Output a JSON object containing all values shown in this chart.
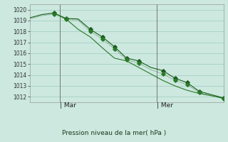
{
  "background_color": "#cce8df",
  "grid_color": "#aad4c8",
  "line_color_dark": "#1a5c1a",
  "line_color_mid": "#2a7a2a",
  "ylabel": "Pression niveau de la mer( hPa )",
  "ylim": [
    1011.5,
    1020.5
  ],
  "yticks": [
    1012,
    1013,
    1014,
    1015,
    1016,
    1017,
    1018,
    1019,
    1020
  ],
  "xlim": [
    0,
    16
  ],
  "mar_x": 2.5,
  "mer_x": 10.5,
  "series1_x": [
    0,
    0.5,
    1,
    2,
    3,
    4,
    5,
    6,
    7,
    8,
    9,
    10,
    11,
    12,
    13,
    14,
    15,
    16
  ],
  "series1_y": [
    1019.25,
    1019.4,
    1019.55,
    1019.7,
    1019.2,
    1019.15,
    1018.2,
    1017.5,
    1016.6,
    1015.55,
    1015.3,
    1014.7,
    1014.4,
    1013.7,
    1013.3,
    1012.5,
    1012.2,
    1011.9
  ],
  "series2_x": [
    0,
    0.5,
    1,
    2,
    3,
    4,
    5,
    6,
    7,
    8,
    9,
    10,
    11,
    12,
    13,
    14,
    15,
    16
  ],
  "series2_y": [
    1019.15,
    1019.3,
    1019.45,
    1019.6,
    1019.1,
    1019.05,
    1018.0,
    1017.3,
    1016.4,
    1015.4,
    1015.1,
    1014.5,
    1014.1,
    1013.5,
    1013.1,
    1012.4,
    1012.1,
    1011.85
  ],
  "series3_x": [
    2,
    3,
    4,
    5,
    6,
    7,
    8,
    9,
    10,
    11,
    12,
    13,
    14,
    15,
    16
  ],
  "series3_y": [
    1019.7,
    1019.15,
    1018.2,
    1017.5,
    1016.5,
    1015.55,
    1015.3,
    1014.7,
    1014.1,
    1013.5,
    1013.0,
    1012.6,
    1012.3,
    1012.1,
    1011.85
  ],
  "marker_x1": [
    2,
    3,
    5,
    6,
    7,
    8,
    9,
    11,
    12,
    13,
    14,
    16
  ],
  "marker_y1": [
    1019.7,
    1019.2,
    1018.2,
    1017.5,
    1016.6,
    1015.55,
    1015.3,
    1014.4,
    1013.7,
    1013.3,
    1012.5,
    1011.9
  ],
  "marker_x2": [
    2,
    3,
    5,
    6,
    7,
    8,
    9,
    11,
    12,
    13,
    14,
    16
  ],
  "marker_y2": [
    1019.6,
    1019.1,
    1018.0,
    1017.3,
    1016.4,
    1015.4,
    1015.1,
    1014.1,
    1013.5,
    1013.1,
    1012.4,
    1011.85
  ]
}
